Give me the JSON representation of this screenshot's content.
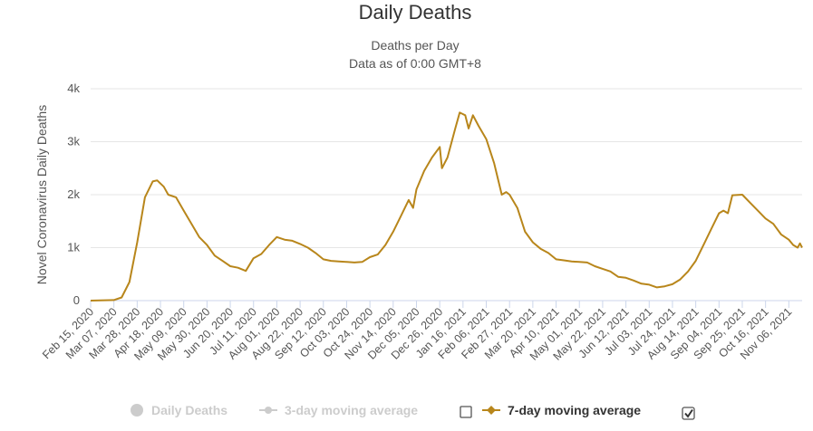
{
  "chart_data": {
    "type": "line",
    "title": "Daily Deaths",
    "subtitle_lines": [
      "Deaths per Day",
      "Data as of 0:00 GMT+8"
    ],
    "ylabel": "Novel Coronavirus Daily Deaths",
    "xlabel": "",
    "ylim": [
      0,
      4000
    ],
    "yticks": [
      0,
      1000,
      2000,
      3000,
      4000
    ],
    "ytick_labels": [
      "0",
      "1k",
      "2k",
      "3k",
      "4k"
    ],
    "x_start_label": "Feb 15, 2020",
    "x_end_label": "Nov 18, 2021",
    "xtick_labels": [
      "Feb 15, 2020",
      "Mar 07, 2020",
      "Mar 28, 2020",
      "Apr 18, 2020",
      "May 09, 2020",
      "May 30, 2020",
      "Jun 20, 2020",
      "Jul 11, 2020",
      "Aug 01, 2020",
      "Aug 22, 2020",
      "Sep 12, 2020",
      "Oct 03, 2020",
      "Oct 24, 2020",
      "Nov 14, 2020",
      "Dec 05, 2020",
      "Dec 26, 2020",
      "Jan 16, 2021",
      "Feb 06, 2021",
      "Feb 27, 2021",
      "Mar 20, 2021",
      "Apr 10, 2021",
      "May 01, 2021",
      "May 22, 2021",
      "Jun 12, 2021",
      "Jul 03, 2021",
      "Jul 24, 2021",
      "Aug 14, 2021",
      "Sep 04, 2021",
      "Sep 25, 2021",
      "Oct 16, 2021",
      "Nov 06, 2021"
    ],
    "grid": true,
    "legend_position": "bottom",
    "series": [
      {
        "name": "7-day moving average",
        "color": "#b8861b",
        "visible": true,
        "points": [
          [
            "Feb 15, 2020",
            0
          ],
          [
            "Mar 07, 2020",
            10
          ],
          [
            "Mar 14, 2020",
            60
          ],
          [
            "Mar 21, 2020",
            350
          ],
          [
            "Mar 28, 2020",
            1100
          ],
          [
            "Apr 04, 2020",
            1950
          ],
          [
            "Apr 11, 2020",
            2250
          ],
          [
            "Apr 15, 2020",
            2270
          ],
          [
            "Apr 21, 2020",
            2150
          ],
          [
            "Apr 25, 2020",
            2000
          ],
          [
            "May 02, 2020",
            1950
          ],
          [
            "May 09, 2020",
            1700
          ],
          [
            "May 16, 2020",
            1450
          ],
          [
            "May 23, 2020",
            1200
          ],
          [
            "May 30, 2020",
            1050
          ],
          [
            "Jun 06, 2020",
            850
          ],
          [
            "Jun 13, 2020",
            750
          ],
          [
            "Jun 20, 2020",
            650
          ],
          [
            "Jun 27, 2020",
            620
          ],
          [
            "Jul 04, 2020",
            560
          ],
          [
            "Jul 11, 2020",
            800
          ],
          [
            "Jul 18, 2020",
            880
          ],
          [
            "Jul 25, 2020",
            1050
          ],
          [
            "Aug 01, 2020",
            1200
          ],
          [
            "Aug 08, 2020",
            1150
          ],
          [
            "Aug 15, 2020",
            1130
          ],
          [
            "Aug 22, 2020",
            1070
          ],
          [
            "Aug 29, 2020",
            1000
          ],
          [
            "Sep 05, 2020",
            900
          ],
          [
            "Sep 12, 2020",
            780
          ],
          [
            "Sep 19, 2020",
            750
          ],
          [
            "Sep 26, 2020",
            740
          ],
          [
            "Oct 03, 2020",
            730
          ],
          [
            "Oct 10, 2020",
            720
          ],
          [
            "Oct 17, 2020",
            730
          ],
          [
            "Oct 24, 2020",
            820
          ],
          [
            "Oct 31, 2020",
            870
          ],
          [
            "Nov 07, 2020",
            1050
          ],
          [
            "Nov 14, 2020",
            1300
          ],
          [
            "Nov 21, 2020",
            1600
          ],
          [
            "Nov 28, 2020",
            1900
          ],
          [
            "Dec 02, 2020",
            1750
          ],
          [
            "Dec 05, 2020",
            2100
          ],
          [
            "Dec 12, 2020",
            2450
          ],
          [
            "Dec 19, 2020",
            2700
          ],
          [
            "Dec 26, 2020",
            2900
          ],
          [
            "Dec 28, 2020",
            2500
          ],
          [
            "Jan 02, 2021",
            2700
          ],
          [
            "Jan 09, 2021",
            3250
          ],
          [
            "Jan 13, 2021",
            3550
          ],
          [
            "Jan 18, 2021",
            3500
          ],
          [
            "Jan 21, 2021",
            3250
          ],
          [
            "Jan 25, 2021",
            3500
          ],
          [
            "Jan 30, 2021",
            3300
          ],
          [
            "Feb 06, 2021",
            3050
          ],
          [
            "Feb 13, 2021",
            2600
          ],
          [
            "Feb 20, 2021",
            2000
          ],
          [
            "Feb 24, 2021",
            2050
          ],
          [
            "Feb 27, 2021",
            2000
          ],
          [
            "Mar 06, 2021",
            1750
          ],
          [
            "Mar 13, 2021",
            1300
          ],
          [
            "Mar 20, 2021",
            1100
          ],
          [
            "Mar 27, 2021",
            980
          ],
          [
            "Apr 03, 2021",
            900
          ],
          [
            "Apr 10, 2021",
            780
          ],
          [
            "Apr 17, 2021",
            760
          ],
          [
            "Apr 24, 2021",
            740
          ],
          [
            "May 01, 2021",
            730
          ],
          [
            "May 08, 2021",
            720
          ],
          [
            "May 15, 2021",
            650
          ],
          [
            "May 22, 2021",
            600
          ],
          [
            "May 29, 2021",
            550
          ],
          [
            "Jun 05, 2021",
            450
          ],
          [
            "Jun 12, 2021",
            430
          ],
          [
            "Jun 19, 2021",
            380
          ],
          [
            "Jun 26, 2021",
            320
          ],
          [
            "Jul 03, 2021",
            300
          ],
          [
            "Jul 10, 2021",
            250
          ],
          [
            "Jul 17, 2021",
            270
          ],
          [
            "Jul 24, 2021",
            310
          ],
          [
            "Jul 31, 2021",
            400
          ],
          [
            "Aug 07, 2021",
            550
          ],
          [
            "Aug 14, 2021",
            750
          ],
          [
            "Aug 21, 2021",
            1050
          ],
          [
            "Aug 28, 2021",
            1350
          ],
          [
            "Sep 04, 2021",
            1650
          ],
          [
            "Sep 08, 2021",
            1700
          ],
          [
            "Sep 12, 2021",
            1650
          ],
          [
            "Sep 16, 2021",
            1990
          ],
          [
            "Sep 25, 2021",
            2000
          ],
          [
            "Oct 02, 2021",
            1850
          ],
          [
            "Oct 09, 2021",
            1700
          ],
          [
            "Oct 16, 2021",
            1550
          ],
          [
            "Oct 23, 2021",
            1450
          ],
          [
            "Oct 30, 2021",
            1250
          ],
          [
            "Nov 06, 2021",
            1150
          ],
          [
            "Nov 10, 2021",
            1050
          ],
          [
            "Nov 14, 2021",
            1000
          ],
          [
            "Nov 16, 2021",
            1080
          ],
          [
            "Nov 18, 2021",
            1000
          ]
        ]
      }
    ],
    "legend": [
      {
        "label": "Daily Deaths",
        "color": "#cccccc",
        "marker": "circle",
        "enabled": false
      },
      {
        "label": "3-day moving average",
        "color": "#cccccc",
        "marker": "line-circle",
        "enabled": false,
        "checkbox_checked": false
      },
      {
        "label": "7-day moving average",
        "color": "#b8861b",
        "marker": "line-diamond",
        "enabled": true,
        "checkbox_checked": true
      }
    ],
    "colors": {
      "grid": "#e6e6e6",
      "axis": "#ccd6eb",
      "series_7day": "#b8861b",
      "disabled": "#cccccc"
    }
  }
}
